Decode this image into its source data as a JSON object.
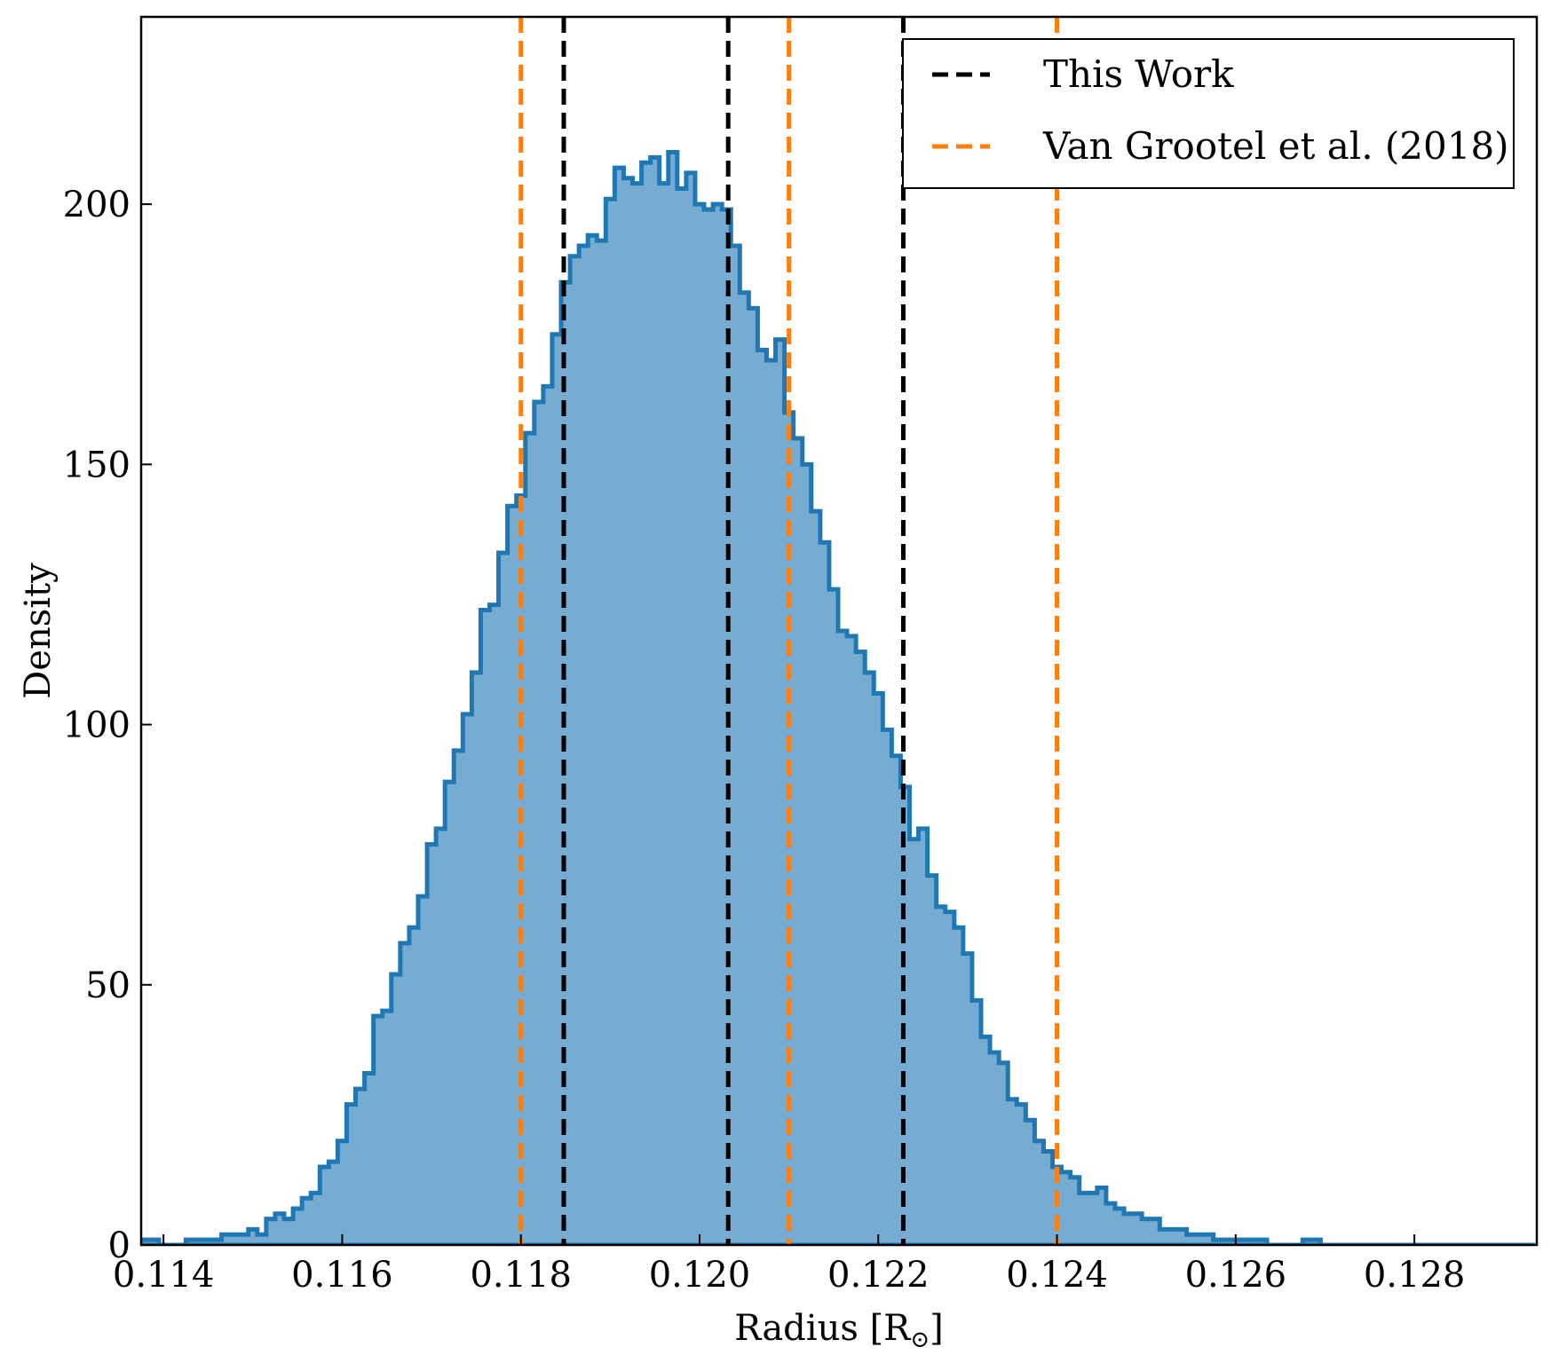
{
  "chart_data": {
    "type": "histogram",
    "xlabel": "Radius [R",
    "xlabel_sub": "⊙",
    "xlabel_end": "]",
    "ylabel": "Density",
    "xlim": [
      0.11375,
      0.12937
    ],
    "ylim": [
      0,
      236
    ],
    "xticks": [
      0.114,
      0.116,
      0.118,
      0.12,
      0.122,
      0.124,
      0.126,
      0.128
    ],
    "xtick_labels": [
      "0.114",
      "0.116",
      "0.118",
      "0.120",
      "0.122",
      "0.124",
      "0.126",
      "0.128"
    ],
    "yticks": [
      0,
      50,
      100,
      150,
      200
    ],
    "ytick_labels": [
      "0",
      "50",
      "100",
      "150",
      "200"
    ],
    "grid": false,
    "legend_position": "top-right",
    "histogram": {
      "color": "#1f77b4",
      "fill": "#77acd2",
      "bin_start": 0.11375,
      "bin_width": 0.0001,
      "densities": [
        1,
        1,
        0,
        0,
        0,
        1,
        1,
        1,
        1,
        2,
        2,
        2,
        3,
        2,
        5,
        6,
        5,
        7,
        9,
        10,
        15,
        16,
        20,
        27,
        30,
        33,
        44,
        45,
        52,
        58,
        61,
        67,
        77,
        80,
        89,
        95,
        102,
        110,
        122,
        123,
        133,
        142,
        144,
        156,
        162,
        165,
        175,
        185,
        190,
        192,
        194,
        193,
        201,
        207,
        205,
        204,
        208,
        209,
        204,
        210,
        203,
        206,
        200,
        199,
        200,
        199,
        192,
        183,
        180,
        172,
        170,
        174,
        160,
        155,
        150,
        141,
        135,
        126,
        118,
        117,
        114,
        110,
        106,
        99,
        94,
        88,
        78,
        80,
        71,
        65,
        64,
        61,
        56,
        47,
        40,
        37,
        35,
        28,
        27,
        24,
        20,
        18,
        15,
        14,
        13,
        10,
        10,
        11,
        8,
        7,
        6,
        6,
        5,
        5,
        3,
        3,
        3,
        2,
        2,
        2,
        1,
        1,
        1,
        1,
        1,
        1,
        0,
        0,
        0,
        0,
        1,
        1,
        0,
        0,
        0,
        0,
        0,
        0,
        0,
        0,
        0,
        0,
        0,
        0,
        0,
        0,
        0,
        0,
        0,
        0,
        0,
        0,
        0,
        0,
        0,
        0
      ]
    },
    "vlines": [
      {
        "series": "This Work",
        "color": "#000000",
        "x": [
          0.11848,
          0.12032,
          0.12228
        ]
      },
      {
        "series": "Van Grootel et al. (2018)",
        "color": "#ff7f0e",
        "x": [
          0.118,
          0.121,
          0.124
        ]
      }
    ],
    "legend": [
      {
        "label": "This Work",
        "color": "#000000"
      },
      {
        "label": "Van Grootel et al. (2018)",
        "color": "#ff7f0e"
      }
    ]
  }
}
